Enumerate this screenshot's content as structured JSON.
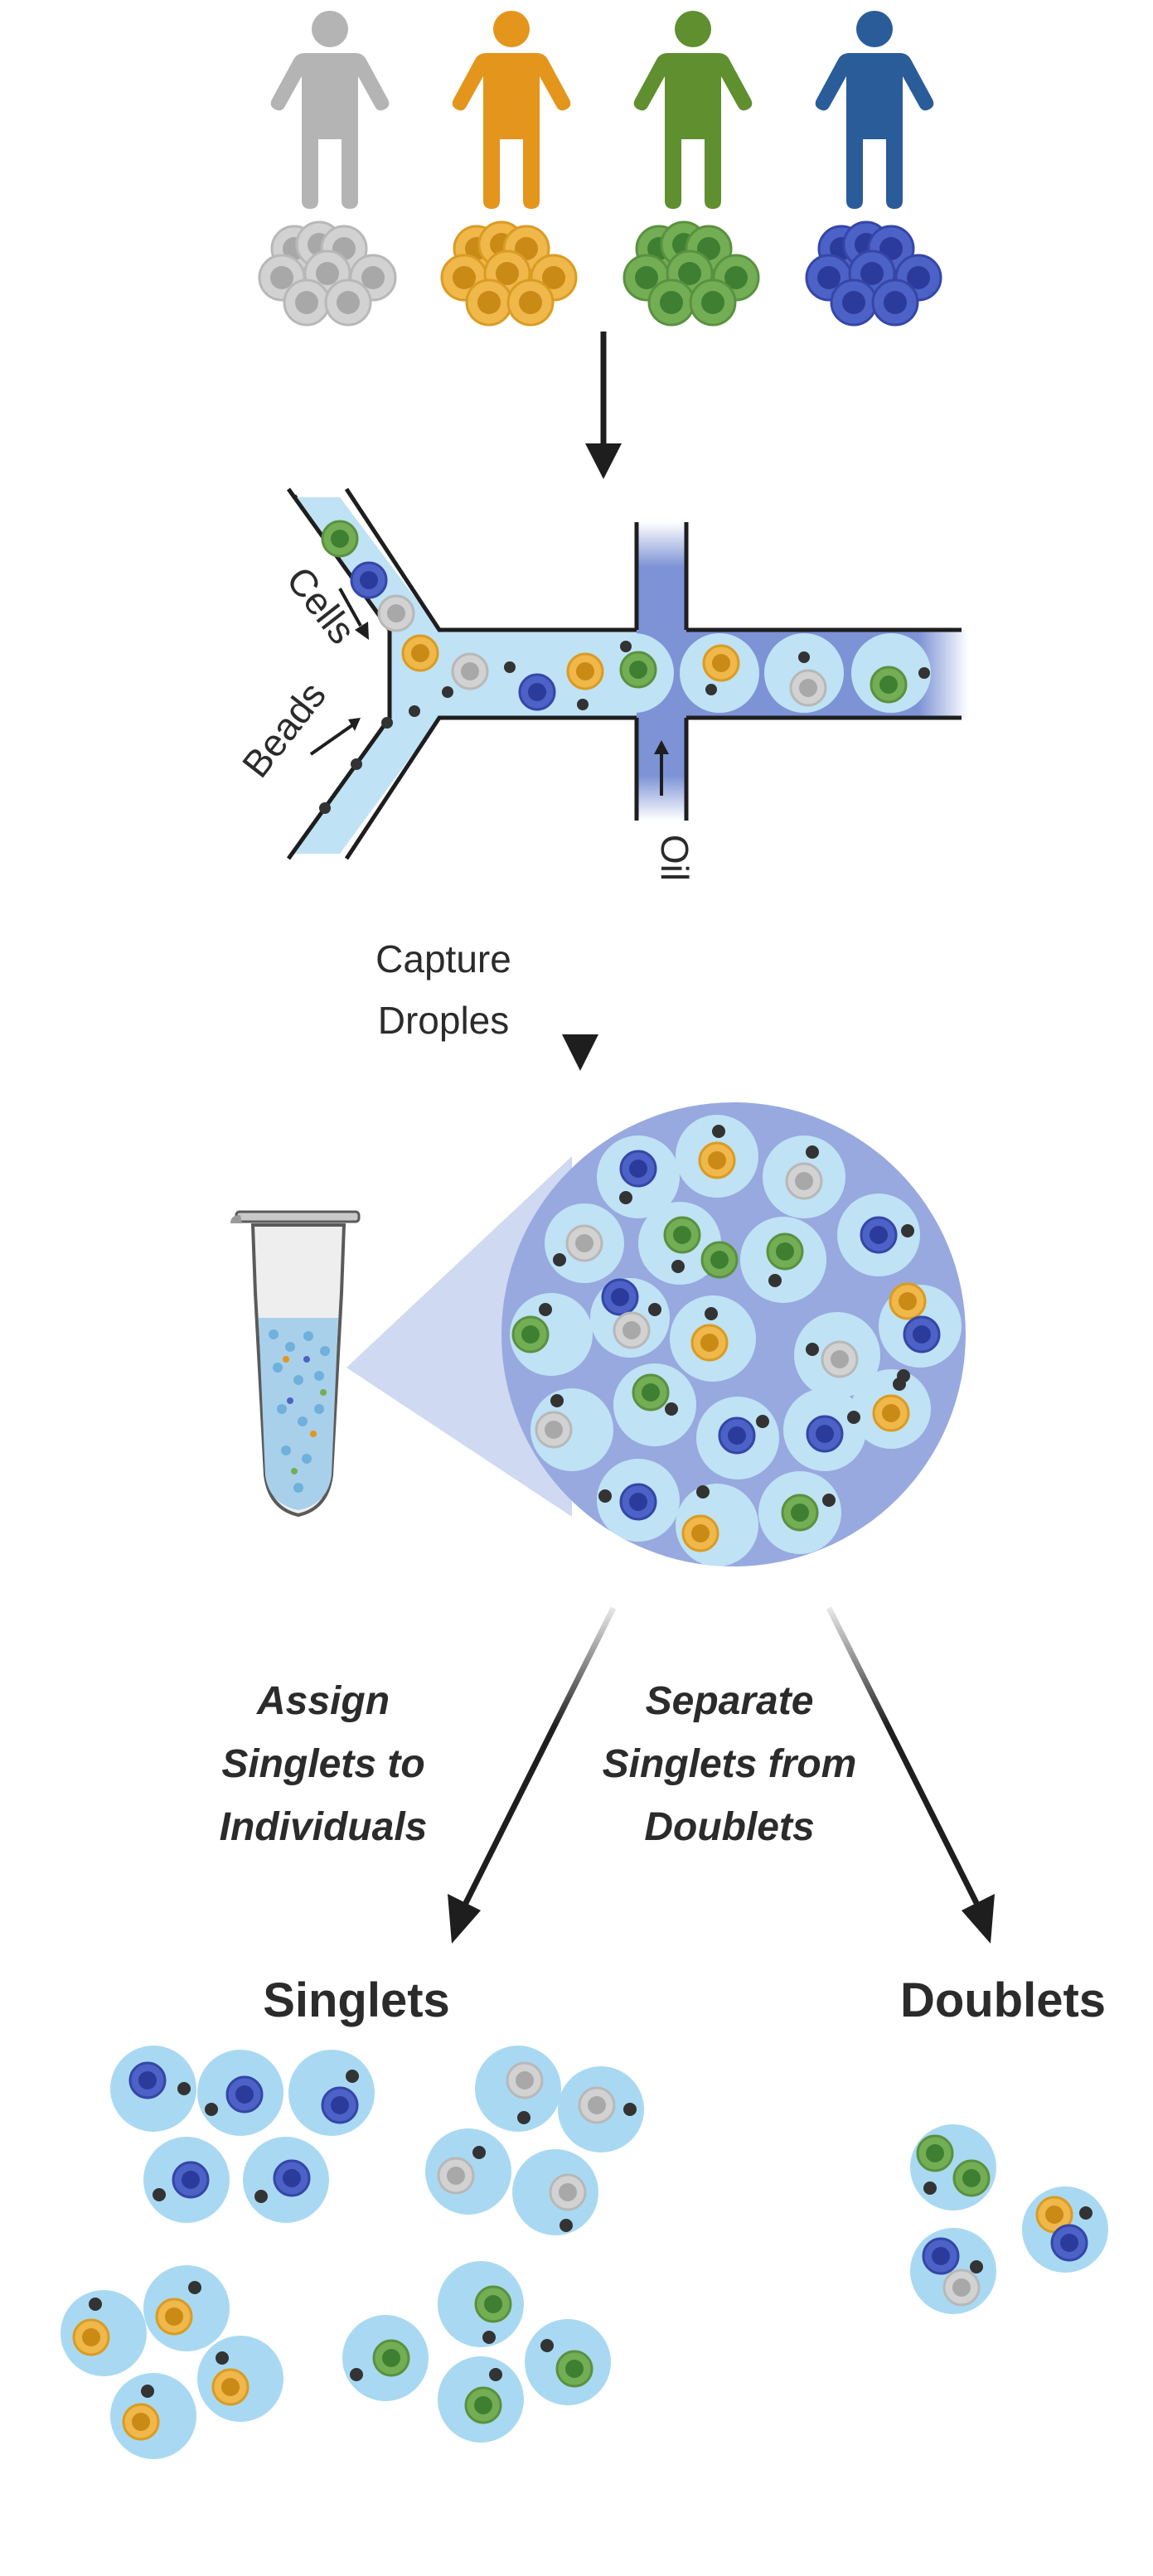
{
  "labels": {
    "cells": "Cells",
    "beads": "Beads",
    "oil": "Oil",
    "capture_line1": "Capture",
    "capture_line2": "Droples",
    "assign_line1": "Assign",
    "assign_line2": "Singlets to",
    "assign_line3": "Individuals",
    "separate_line1": "Separate",
    "separate_line2": "Singlets from",
    "separate_line3": "Doublets",
    "singlets": "Singlets",
    "doublets": "Doublets"
  },
  "colors": {
    "grey": "#b4b4b4",
    "orange": "#e4951c",
    "green": "#5f8f2f",
    "blue": "#2a5c9a",
    "droplet": "#a9d9f2",
    "channel": "#bfe2f5",
    "bead": "#333333"
  }
}
